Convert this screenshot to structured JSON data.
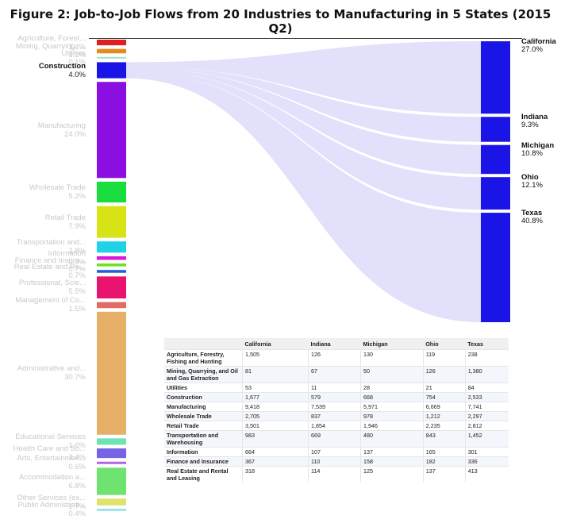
{
  "title": "Figure 2: Job-to-Job Flows from 20 Industries to Manufacturing in 5 States (2015 Q2)",
  "chart_data": {
    "type": "sankey",
    "title": "Figure 2: Job-to-Job Flows from 20 Industries to Manufacturing in 5 States (2015 Q2)",
    "selected_source": "Construction",
    "sources": [
      {
        "label": "Agriculture, Forest...",
        "pct": "1.4%",
        "value": 1.4,
        "color": "#dd1f1f"
      },
      {
        "label": "Mining, Quarrying, ...",
        "pct": "1.1%",
        "value": 1.1,
        "color": "#e8891b"
      },
      {
        "label": "Utilities",
        "pct": "0.1%",
        "value": 0.1,
        "color": "#9be3cf"
      },
      {
        "label": "Construction",
        "pct": "4.0%",
        "value": 4.0,
        "color": "#1b14e6"
      },
      {
        "label": "Manufacturing",
        "pct": "24.0%",
        "value": 24.0,
        "color": "#8a0fe0"
      },
      {
        "label": "Wholesale Trade",
        "pct": "5.2%",
        "value": 5.2,
        "color": "#19dd3e"
      },
      {
        "label": "Retail Trade",
        "pct": "7.9%",
        "value": 7.9,
        "color": "#d7e314"
      },
      {
        "label": "Transportation and...",
        "pct": "2.8%",
        "value": 2.8,
        "color": "#1ed3e8"
      },
      {
        "label": "Information",
        "pct": "0.9%",
        "value": 0.9,
        "color": "#d71bd9"
      },
      {
        "label": "Finance and Insura...",
        "pct": "0.7%",
        "value": 0.7,
        "color": "#69e31a"
      },
      {
        "label": "Real Estate and Re...",
        "pct": "0.7%",
        "value": 0.7,
        "color": "#1d5fe0"
      },
      {
        "label": "Professional, Scie...",
        "pct": "5.5%",
        "value": 5.5,
        "color": "#e8146f"
      },
      {
        "label": "Management of Co...",
        "pct": "1.5%",
        "value": 1.5,
        "color": "#e26b66"
      },
      {
        "label": "Administrative and...",
        "pct": "30.7%",
        "value": 30.7,
        "color": "#e6b068"
      },
      {
        "label": "Educational Services",
        "pct": "1.6%",
        "value": 1.6,
        "color": "#6ee3b4"
      },
      {
        "label": "Health Care and So...",
        "pct": "2.4%",
        "value": 2.4,
        "color": "#7664e4"
      },
      {
        "label": "Arts, Entertainmen...",
        "pct": "0.6%",
        "value": 0.6,
        "color": "#b565e2"
      },
      {
        "label": "Accommodation a...",
        "pct": "6.8%",
        "value": 6.8,
        "color": "#6ee36f"
      },
      {
        "label": "Other Services (ex...",
        "pct": "1.7%",
        "value": 1.7,
        "color": "#dde36c"
      },
      {
        "label": "Public Administrati...",
        "pct": "0.4%",
        "value": 0.4,
        "color": "#6ed7e3"
      }
    ],
    "targets": [
      {
        "label": "California",
        "pct": "27.0%",
        "value": 27.0,
        "color": "#1b14e6"
      },
      {
        "label": "Indiana",
        "pct": "9.3%",
        "value": 9.3,
        "color": "#1b14e6"
      },
      {
        "label": "Michigan",
        "pct": "10.8%",
        "value": 10.8,
        "color": "#1b14e6"
      },
      {
        "label": "Ohio",
        "pct": "12.1%",
        "value": 12.1,
        "color": "#1b14e6"
      },
      {
        "label": "Texas",
        "pct": "40.8%",
        "value": 40.8,
        "color": "#1b14e6"
      }
    ],
    "flow_color": "#d8d6f8"
  },
  "table": {
    "columns": [
      "",
      "California",
      "Indiana",
      "Michigan",
      "Ohio",
      "Texas"
    ],
    "rows": [
      {
        "industry": "Agriculture, Forestry, Fishing and Hunting",
        "values": [
          "1,505",
          "126",
          "130",
          "119",
          "238"
        ]
      },
      {
        "industry": "Mining, Quarrying, and Oil and Gas Extraction",
        "values": [
          "81",
          "67",
          "50",
          "126",
          "1,380"
        ]
      },
      {
        "industry": "Utilities",
        "values": [
          "53",
          "11",
          "28",
          "21",
          "84"
        ]
      },
      {
        "industry": "Construction",
        "values": [
          "1,677",
          "579",
          "668",
          "754",
          "2,533"
        ]
      },
      {
        "industry": "Manufacturing",
        "values": [
          "9,418",
          "7,539",
          "5,971",
          "6,669",
          "7,741"
        ]
      },
      {
        "industry": "Wholesale Trade",
        "values": [
          "2,705",
          "837",
          "978",
          "1,212",
          "2,297"
        ]
      },
      {
        "industry": "Retail Trade",
        "values": [
          "3,501",
          "1,854",
          "1,946",
          "2,235",
          "2,812"
        ]
      },
      {
        "industry": "Transportation and Warehousing",
        "values": [
          "983",
          "669",
          "480",
          "843",
          "1,452"
        ]
      },
      {
        "industry": "Information",
        "values": [
          "664",
          "107",
          "137",
          "165",
          "301"
        ]
      },
      {
        "industry": "Finance and Insurance",
        "values": [
          "367",
          "110",
          "158",
          "182",
          "336"
        ]
      },
      {
        "industry": "Real Estate and Rental and Leasing",
        "values": [
          "318",
          "114",
          "125",
          "137",
          "413"
        ]
      }
    ]
  }
}
